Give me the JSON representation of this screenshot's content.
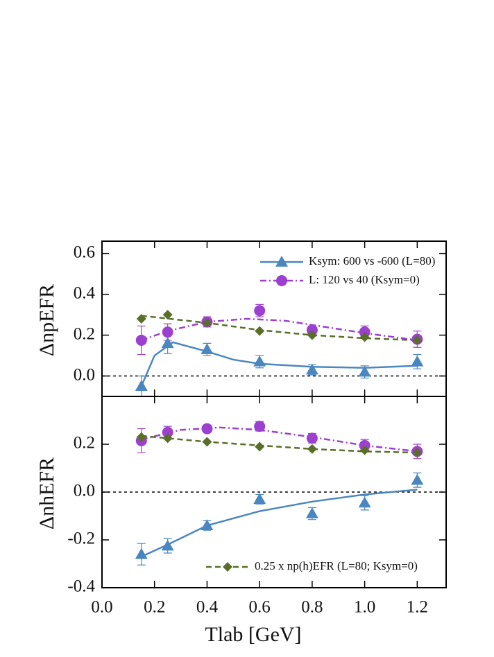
{
  "chart_data": [
    {
      "type": "line",
      "ylabel": "ΔnpEFR",
      "legend": "upper right",
      "zero_line": 0,
      "x": [
        0.15,
        0.25,
        0.4,
        0.6,
        0.8,
        1.0,
        1.2
      ],
      "xlim": [
        0,
        1.31
      ],
      "xticks": [
        {
          "value": 0,
          "label": "0.0"
        },
        0.2,
        0.4,
        0.6,
        0.8,
        {
          "value": 1,
          "label": "1.0"
        },
        1.2
      ],
      "ylim": [
        -0.1,
        0.66
      ],
      "yticks": [
        {
          "value": 0,
          "label": "0.0"
        },
        0.2,
        0.4,
        0.6
      ],
      "series": [
        {
          "name": "Ksym: 600 vs -600 (L=80)",
          "color": "#4a86c0",
          "marker": "triangle",
          "line_style": "solid",
          "values": [
            -0.05,
            0.16,
            0.13,
            0.07,
            0.03,
            0.02,
            0.07
          ],
          "errors": [
            0.05,
            0.05,
            0.03,
            0.03,
            0.025,
            0.03,
            0.035
          ],
          "fit": {
            "x": [
              0.15,
              0.2,
              0.27,
              0.4,
              0.5,
              0.6,
              0.8,
              1.0,
              1.2
            ],
            "values": [
              -0.05,
              0.1,
              0.165,
              0.12,
              0.08,
              0.06,
              0.045,
              0.04,
              0.05
            ]
          }
        },
        {
          "name": "L: 120 vs 40 (Ksym=0)",
          "color": "#9b40cf",
          "marker": "circle",
          "line_style": "dashdot",
          "values": [
            0.175,
            0.215,
            0.265,
            0.32,
            0.225,
            0.215,
            0.18
          ],
          "errors": [
            0.07,
            0.04,
            0.025,
            0.03,
            0.02,
            0.03,
            0.04
          ],
          "fit": {
            "x": [
              0.15,
              0.25,
              0.4,
              0.55,
              0.7,
              0.8,
              1.0,
              1.2
            ],
            "values": [
              0.175,
              0.22,
              0.265,
              0.28,
              0.27,
              0.25,
              0.21,
              0.175
            ]
          }
        },
        {
          "color": "#5a6e2a",
          "marker": "diamond",
          "line_style": "dashed",
          "values": [
            0.28,
            0.3,
            0.26,
            0.22,
            0.2,
            0.19,
            0.175
          ],
          "fit": {
            "x": [
              0.15,
              0.4,
              0.6,
              0.8,
              1.0,
              1.2
            ],
            "values": [
              0.295,
              0.26,
              0.225,
              0.2,
              0.185,
              0.175
            ]
          }
        }
      ]
    },
    {
      "type": "line",
      "ylabel": "ΔnhEFR",
      "xlabel": "Tlab [GeV]",
      "legend": "lower right",
      "zero_line": 0,
      "x": [
        0.15,
        0.25,
        0.4,
        0.6,
        0.8,
        1.0,
        1.2
      ],
      "xlim": [
        0,
        1.31
      ],
      "xticks": [
        {
          "value": 0,
          "label": "0.0"
        },
        0.2,
        0.4,
        0.6,
        0.8,
        {
          "value": 1,
          "label": "1.0"
        },
        1.2
      ],
      "ylim": [
        -0.4,
        0.4
      ],
      "yticks": [
        -0.4,
        -0.2,
        {
          "value": 0,
          "label": "0.0"
        },
        0.2
      ],
      "series": [
        {
          "color": "#4a86c0",
          "marker": "triangle",
          "line_style": "solid",
          "values": [
            -0.26,
            -0.225,
            -0.14,
            -0.03,
            -0.09,
            -0.045,
            0.05
          ],
          "errors": [
            0.045,
            0.03,
            0.02,
            0.02,
            0.025,
            0.03,
            0.03
          ],
          "fit": {
            "x": [
              0.15,
              0.25,
              0.4,
              0.6,
              0.8,
              1.0,
              1.2
            ],
            "values": [
              -0.27,
              -0.22,
              -0.14,
              -0.08,
              -0.04,
              -0.01,
              0.01
            ]
          }
        },
        {
          "color": "#9b40cf",
          "marker": "circle",
          "line_style": "dashdot",
          "values": [
            0.215,
            0.25,
            0.265,
            0.275,
            0.225,
            0.195,
            0.17
          ],
          "errors": [
            0.05,
            0.025,
            0.015,
            0.02,
            0.02,
            0.025,
            0.03
          ],
          "fit": {
            "x": [
              0.15,
              0.3,
              0.45,
              0.6,
              0.8,
              1.0,
              1.2
            ],
            "values": [
              0.22,
              0.26,
              0.27,
              0.26,
              0.23,
              0.195,
              0.17
            ]
          }
        },
        {
          "name": "0.25 x np(h)EFR (L=80; Ksym=0)",
          "color": "#5a6e2a",
          "marker": "diamond",
          "line_style": "dashed",
          "values": [
            0.23,
            0.225,
            0.21,
            0.19,
            0.18,
            0.175,
            0.165
          ],
          "fit": {
            "x": [
              0.15,
              0.4,
              0.6,
              0.8,
              1.0,
              1.2
            ],
            "values": [
              0.235,
              0.21,
              0.195,
              0.18,
              0.17,
              0.165
            ]
          }
        }
      ]
    }
  ]
}
